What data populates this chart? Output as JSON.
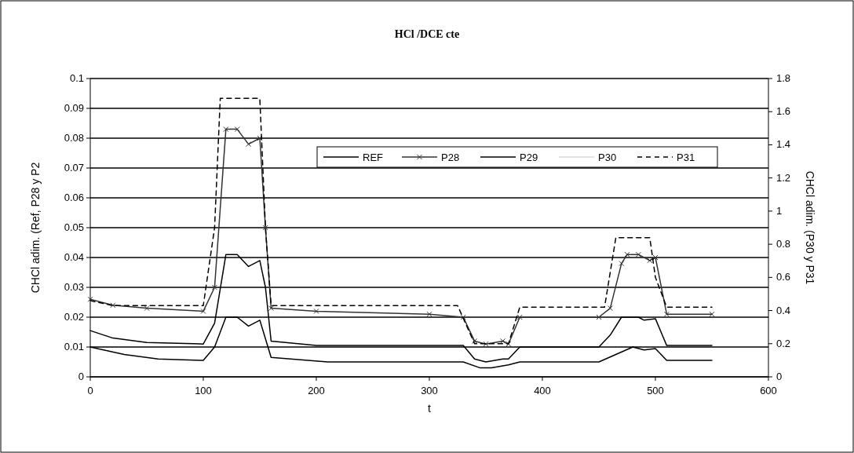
{
  "chart_data": {
    "type": "line",
    "title": "HCl /DCE cte",
    "xlabel": "t",
    "ylabel": "CHCl adim. (Ref, P28 y P2",
    "y2label": "CHCl adim. (P30 y P31",
    "xlim": [
      0,
      600
    ],
    "xticks": [
      0,
      100,
      200,
      300,
      400,
      500,
      600
    ],
    "ylim": [
      0,
      0.1
    ],
    "yticks": [
      0,
      0.01,
      0.02,
      0.03,
      0.04,
      0.05,
      0.06,
      0.07,
      0.08,
      0.09,
      0.1
    ],
    "y2lim": [
      0,
      1.8
    ],
    "y2ticks": [
      0,
      0.2,
      0.4,
      0.6,
      0.8,
      1,
      1.2,
      1.4,
      1.6,
      1.8
    ],
    "grid": "y",
    "legend": "top right",
    "series": [
      {
        "name": "REF",
        "color": "#000000",
        "line_style": "solid",
        "marker": "none",
        "x": [
          0,
          20,
          50,
          100,
          110,
          120,
          130,
          140,
          150,
          155,
          160,
          200,
          330,
          340,
          350,
          365,
          370,
          380,
          450,
          460,
          470,
          485,
          490,
          500,
          505,
          510,
          550
        ],
        "values": [
          0.0155,
          0.013,
          0.0115,
          0.011,
          0.018,
          0.041,
          0.041,
          0.037,
          0.039,
          0.03,
          0.012,
          0.0105,
          0.0105,
          0.006,
          0.005,
          0.006,
          0.006,
          0.01,
          0.01,
          0.014,
          0.02,
          0.02,
          0.019,
          0.0195,
          0.015,
          0.0105,
          0.0105
        ]
      },
      {
        "name": "P28",
        "color": "#333333",
        "line_style": "solid",
        "marker": "cross",
        "x": [
          0,
          20,
          50,
          100,
          110,
          120,
          130,
          140,
          150,
          155,
          160,
          200,
          300,
          330,
          340,
          350,
          365,
          370,
          380,
          450,
          460,
          470,
          475,
          485,
          495,
          500,
          510,
          550
        ],
        "values": [
          0.026,
          0.024,
          0.023,
          0.022,
          0.03,
          0.083,
          0.083,
          0.078,
          0.08,
          0.05,
          0.023,
          0.022,
          0.021,
          0.02,
          0.012,
          0.011,
          0.012,
          0.011,
          0.02,
          0.02,
          0.023,
          0.038,
          0.041,
          0.041,
          0.039,
          0.04,
          0.021,
          0.021
        ]
      },
      {
        "name": "P29",
        "color": "#000000",
        "line_style": "solid",
        "marker": "none",
        "x": [
          0,
          30,
          60,
          100,
          110,
          120,
          130,
          140,
          150,
          160,
          210,
          330,
          345,
          355,
          370,
          380,
          450,
          480,
          490,
          500,
          510,
          550
        ],
        "values": [
          0.01,
          0.0075,
          0.006,
          0.0055,
          0.01,
          0.02,
          0.02,
          0.017,
          0.019,
          0.0065,
          0.005,
          0.005,
          0.003,
          0.003,
          0.004,
          0.005,
          0.005,
          0.01,
          0.009,
          0.0095,
          0.0055,
          0.0055
        ]
      },
      {
        "name": "P30",
        "color": "#d9d9d9",
        "axis": "y2",
        "line_style": "solid",
        "marker": "none"
      },
      {
        "name": "P31",
        "color": "#000000",
        "axis": "y2",
        "line_style": "dashed",
        "marker": "none",
        "x": [
          0,
          20,
          100,
          110,
          115,
          150,
          155,
          160,
          325,
          340,
          370,
          380,
          455,
          465,
          495,
          500,
          510,
          550
        ],
        "values": [
          0.46,
          0.43,
          0.43,
          0.9,
          1.68,
          1.68,
          0.9,
          0.43,
          0.43,
          0.2,
          0.2,
          0.42,
          0.42,
          0.84,
          0.84,
          0.6,
          0.42,
          0.42
        ]
      }
    ]
  }
}
